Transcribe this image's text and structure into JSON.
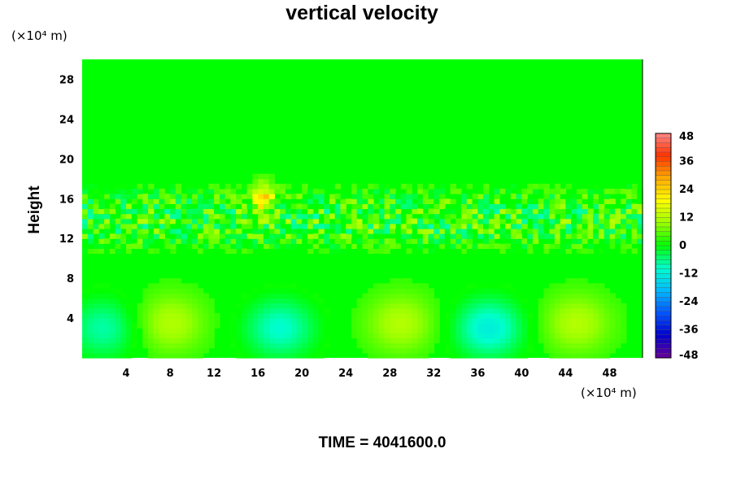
{
  "chart_data": {
    "type": "heatmap",
    "title": "vertical velocity",
    "ylabel": "Height",
    "xlabel": "",
    "x_unit": "(×10⁴ m)",
    "y_unit": "(×10⁴ m)",
    "xlim": [
      0,
      51
    ],
    "ylim": [
      0,
      30
    ],
    "x_ticks": [
      4,
      8,
      12,
      16,
      20,
      24,
      28,
      32,
      36,
      40,
      44,
      48
    ],
    "y_ticks": [
      4,
      8,
      12,
      16,
      20,
      24,
      28
    ],
    "colorbar": {
      "range": [
        -48,
        48
      ],
      "ticks": [
        48,
        36,
        24,
        12,
        0,
        -12,
        -24,
        -36,
        -48
      ],
      "colors_low_to_high": [
        "#6a0099",
        "#0000cc",
        "#0055ff",
        "#00bbff",
        "#00ffcc",
        "#00ff00",
        "#99ff00",
        "#ffff00",
        "#ffaa00",
        "#ff3300",
        "#ff8888"
      ]
    },
    "field_features": {
      "background_value": 2,
      "lower_cells": [
        {
          "x_center": 8,
          "y_center": 3.5,
          "value": 12
        },
        {
          "x_center": 29,
          "y_center": 3.5,
          "value": 12
        },
        {
          "x_center": 45,
          "y_center": 3.5,
          "value": 12
        },
        {
          "x_center": 2,
          "y_center": 3,
          "value": -8
        },
        {
          "x_center": 18,
          "y_center": 3,
          "value": -10
        },
        {
          "x_center": 37,
          "y_center": 3,
          "value": -12
        }
      ],
      "turbulent_layer_y": [
        10,
        18
      ],
      "peak_updraft": {
        "x": 16.5,
        "y": 16,
        "value": 24
      }
    }
  },
  "footer": {
    "time_label": "TIME = 4041600.0"
  }
}
